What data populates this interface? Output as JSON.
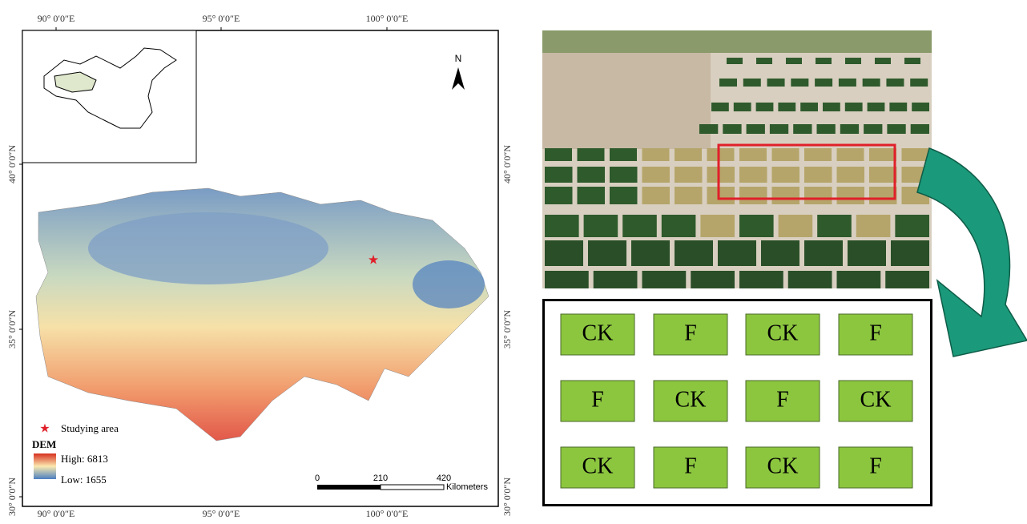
{
  "map": {
    "lon_labels": [
      "90° 0′0″E",
      "95° 0′0″E",
      "100° 0′0″E"
    ],
    "lat_labels": [
      "40° 0′0″N",
      "35° 0′0″N",
      "30° 0′0″N"
    ],
    "north": "N",
    "legend": {
      "study_area": "Studying area",
      "title": "DEM",
      "high": "High: 6813",
      "low": "Low: 1655"
    },
    "scale_bar": {
      "ticks": [
        "0",
        "210",
        "420"
      ],
      "unit": "Kilometers"
    }
  },
  "plot_layout": {
    "rows": [
      [
        "CK",
        "F",
        "CK",
        "F"
      ],
      [
        "F",
        "CK",
        "F",
        "CK"
      ],
      [
        "CK",
        "F",
        "CK",
        "F"
      ]
    ]
  }
}
